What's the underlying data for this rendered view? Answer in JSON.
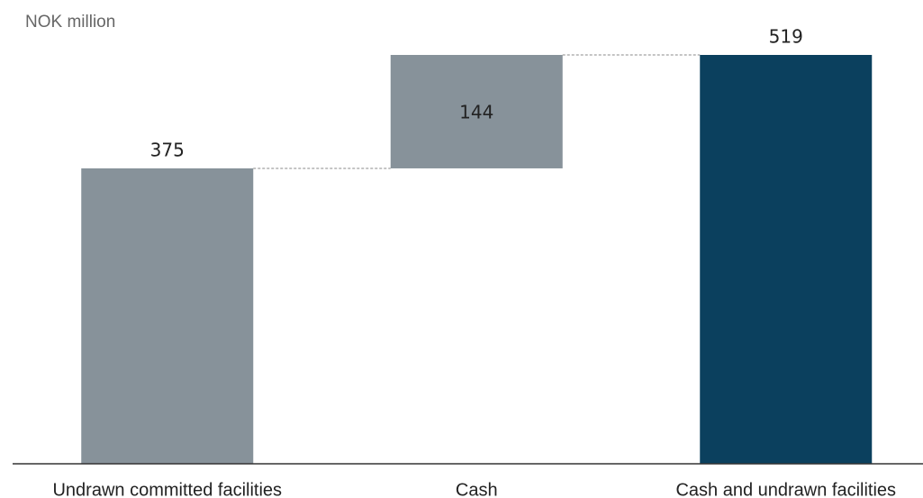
{
  "chart_data": {
    "type": "waterfall",
    "title": "NOK million",
    "categories": [
      "Undrawn committed facilities",
      "Cash",
      "Cash and undrawn facilities"
    ],
    "values": [
      375,
      144,
      519
    ],
    "measure": [
      "relative",
      "relative",
      "total"
    ],
    "colors": [
      "#87929a",
      "#87929a",
      "#0b405e"
    ]
  }
}
